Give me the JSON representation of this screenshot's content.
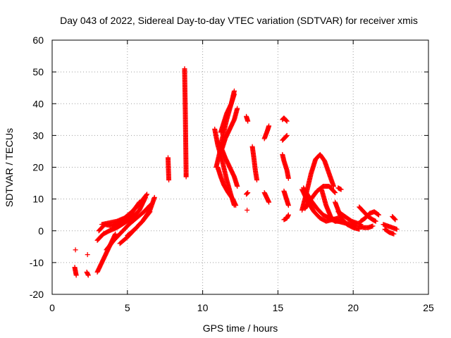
{
  "chart_data": {
    "type": "scatter",
    "title": "Day 043 of 2022, Sidereal Day-to-day VTEC variation (SDTVAR) for receiver xmis",
    "xlabel": "GPS time / hours",
    "ylabel": "SDTVAR / TECUs",
    "xlim": [
      0,
      25
    ],
    "ylim": [
      -20,
      60
    ],
    "xticks": [
      0,
      5,
      10,
      15,
      20,
      25
    ],
    "yticks": [
      -20,
      -10,
      0,
      10,
      20,
      30,
      40,
      50,
      60
    ],
    "xtick_labels": [
      "0",
      "5",
      "10",
      "15",
      "20",
      "25"
    ],
    "ytick_labels": [
      "-20",
      "-10",
      "0",
      "10",
      "20",
      "30",
      "40",
      "50",
      "60"
    ],
    "grid": true,
    "marker": "+",
    "color": "#ff0000",
    "tracks": [
      {
        "x": [
          1.5,
          1.6
        ],
        "y": [
          -11.5,
          -14.0
        ]
      },
      {
        "x": [
          1.55
        ],
        "y": [
          -6.0
        ]
      },
      {
        "x": [
          2.3,
          2.4
        ],
        "y": [
          -13.0,
          -14.0
        ]
      },
      {
        "x": [
          2.35
        ],
        "y": [
          -7.5
        ]
      },
      {
        "x": [
          3.0,
          3.4,
          3.8,
          4.2
        ],
        "y": [
          -13.0,
          -9.0,
          -5.0,
          -1.0
        ]
      },
      {
        "x": [
          3.0,
          3.4,
          3.8,
          4.3,
          4.8,
          5.3,
          5.8,
          6.2
        ],
        "y": [
          -3.0,
          -1.0,
          0.0,
          1.0,
          2.5,
          4.0,
          6.5,
          10.5
        ]
      },
      {
        "x": [
          3.1,
          3.5,
          4.0,
          4.6,
          5.2,
          5.8
        ],
        "y": [
          0.0,
          2.0,
          1.5,
          3.0,
          5.0,
          9.0
        ]
      },
      {
        "x": [
          3.3,
          3.8,
          4.3,
          4.8,
          5.3,
          5.8,
          6.3
        ],
        "y": [
          2.0,
          2.5,
          3.0,
          4.0,
          6.0,
          8.5,
          11.5
        ]
      },
      {
        "x": [
          3.6,
          4.1,
          4.6,
          5.1,
          5.6,
          6.1,
          6.5
        ],
        "y": [
          -6.0,
          -3.0,
          -0.5,
          2.0,
          4.0,
          6.0,
          8.0
        ]
      },
      {
        "x": [
          4.5,
          5.0,
          5.5,
          6.0,
          6.5
        ],
        "y": [
          -4.0,
          -2.0,
          0.5,
          3.0,
          6.0
        ]
      },
      {
        "x": [
          5.0,
          5.5,
          6.0,
          6.5,
          6.8
        ],
        "y": [
          -1.5,
          0.5,
          3.0,
          6.5,
          10.5
        ]
      },
      {
        "x": [
          7.7,
          7.75
        ],
        "y": [
          23.0,
          16.0
        ]
      },
      {
        "x": [
          8.8,
          8.85,
          8.9,
          8.9
        ],
        "y": [
          51.0,
          36.5,
          18.0,
          17.0
        ]
      },
      {
        "x": [
          10.8,
          11.0,
          11.3,
          11.6,
          11.9,
          12.1
        ],
        "y": [
          32.0,
          27.0,
          22.0,
          16.0,
          11.0,
          8.0
        ]
      },
      {
        "x": [
          10.9,
          11.1,
          11.3,
          11.6,
          11.9,
          12.1
        ],
        "y": [
          20.0,
          24.0,
          29.0,
          35.0,
          40.0,
          44.0
        ]
      },
      {
        "x": [
          11.0,
          11.2,
          11.4,
          11.7,
          12.0,
          12.2
        ],
        "y": [
          20.0,
          17.0,
          14.5,
          12.0,
          10.0,
          8.0
        ]
      },
      {
        "x": [
          11.2,
          11.4,
          11.6,
          11.9,
          12.1
        ],
        "y": [
          31.0,
          34.0,
          37.0,
          40.0,
          43.0
        ]
      },
      {
        "x": [
          11.0,
          11.25,
          11.5,
          11.8,
          12.1,
          12.3
        ],
        "y": [
          28.0,
          26.0,
          23.0,
          20.0,
          17.0,
          14.0
        ]
      },
      {
        "x": [
          11.3,
          11.5,
          11.8,
          12.1,
          12.3
        ],
        "y": [
          26.0,
          29.0,
          32.0,
          35.0,
          38.5
        ]
      },
      {
        "x": [
          12.9,
          13.0
        ],
        "y": [
          36.0,
          34.5
        ]
      },
      {
        "x": [
          12.9,
          13.0
        ],
        "y": [
          11.5,
          12.0
        ]
      },
      {
        "x": [
          12.95
        ],
        "y": [
          6.5
        ]
      },
      {
        "x": [
          13.3,
          13.4,
          13.5,
          13.6
        ],
        "y": [
          26.5,
          23.0,
          19.0,
          16.0
        ]
      },
      {
        "x": [
          14.1,
          14.3,
          14.4
        ],
        "y": [
          29.0,
          31.5,
          33.0
        ]
      },
      {
        "x": [
          14.1,
          14.25,
          14.4
        ],
        "y": [
          12.0,
          10.5,
          9.0
        ]
      },
      {
        "x": [
          15.3,
          15.4,
          15.6
        ],
        "y": [
          35.0,
          35.5,
          34.5
        ]
      },
      {
        "x": [
          15.3,
          15.5,
          15.6
        ],
        "y": [
          28.5,
          29.5,
          30.0
        ]
      },
      {
        "x": [
          15.3,
          15.4,
          15.6,
          15.7
        ],
        "y": [
          24.0,
          22.0,
          19.0,
          16.5
        ]
      },
      {
        "x": [
          15.4,
          15.5,
          15.6,
          15.7
        ],
        "y": [
          12.5,
          11.0,
          9.5,
          8.0
        ]
      },
      {
        "x": [
          15.4,
          15.6,
          15.7
        ],
        "y": [
          3.5,
          4.0,
          5.0
        ]
      },
      {
        "x": [
          16.6,
          16.9,
          17.2,
          17.5,
          17.8,
          18.1,
          18.4,
          18.7
        ],
        "y": [
          6.5,
          12.0,
          18.0,
          22.5,
          24.0,
          22.0,
          18.0,
          14.0
        ]
      },
      {
        "x": [
          16.6,
          17.0,
          17.4,
          17.8,
          18.2,
          18.6,
          19.0
        ],
        "y": [
          13.0,
          9.0,
          6.0,
          4.0,
          3.0,
          3.5,
          4.0
        ]
      },
      {
        "x": [
          16.8,
          17.2,
          17.6,
          18.0,
          18.4,
          18.8
        ],
        "y": [
          7.0,
          10.0,
          12.5,
          14.0,
          14.0,
          12.0
        ]
      },
      {
        "x": [
          16.7,
          17.2,
          17.6,
          18.0,
          18.4,
          18.8,
          19.2
        ],
        "y": [
          13.5,
          9.5,
          7.0,
          5.0,
          4.0,
          3.0,
          3.0
        ]
      },
      {
        "x": [
          17.9,
          18.2,
          18.5,
          18.8
        ],
        "y": [
          13.0,
          8.0,
          4.5,
          3.0
        ]
      },
      {
        "x": [
          18.8,
          19.2,
          19.6,
          20.0,
          20.4
        ],
        "y": [
          9.0,
          4.0,
          2.0,
          1.0,
          0.5
        ]
      },
      {
        "x": [
          18.7,
          19.0,
          19.4,
          19.8,
          20.2
        ],
        "y": [
          3.5,
          3.0,
          2.5,
          2.0,
          1.5
        ]
      },
      {
        "x": [
          19.0,
          19.3,
          19.6,
          19.9,
          20.2,
          20.5
        ],
        "y": [
          6.0,
          5.0,
          4.0,
          3.0,
          2.5,
          2.0
        ]
      },
      {
        "x": [
          19.0,
          19.2
        ],
        "y": [
          13.5,
          13.0
        ]
      },
      {
        "x": [
          20.4,
          20.7,
          21.0,
          21.3,
          21.5
        ],
        "y": [
          7.5,
          6.0,
          4.5,
          3.5,
          3.0
        ]
      },
      {
        "x": [
          20.5,
          20.8,
          21.1,
          21.4,
          21.7
        ],
        "y": [
          3.0,
          4.0,
          5.5,
          6.0,
          5.0
        ]
      },
      {
        "x": [
          20.4,
          20.7,
          21.0,
          21.3
        ],
        "y": [
          1.5,
          1.0,
          1.0,
          1.5
        ]
      },
      {
        "x": [
          22.0,
          22.3,
          22.6,
          22.9
        ],
        "y": [
          2.0,
          1.5,
          1.0,
          0.5
        ]
      },
      {
        "x": [
          22.1,
          22.4,
          22.7
        ],
        "y": [
          0.5,
          -0.5,
          -1.0
        ]
      },
      {
        "x": [
          22.6,
          22.8
        ],
        "y": [
          4.5,
          3.5
        ]
      }
    ]
  }
}
